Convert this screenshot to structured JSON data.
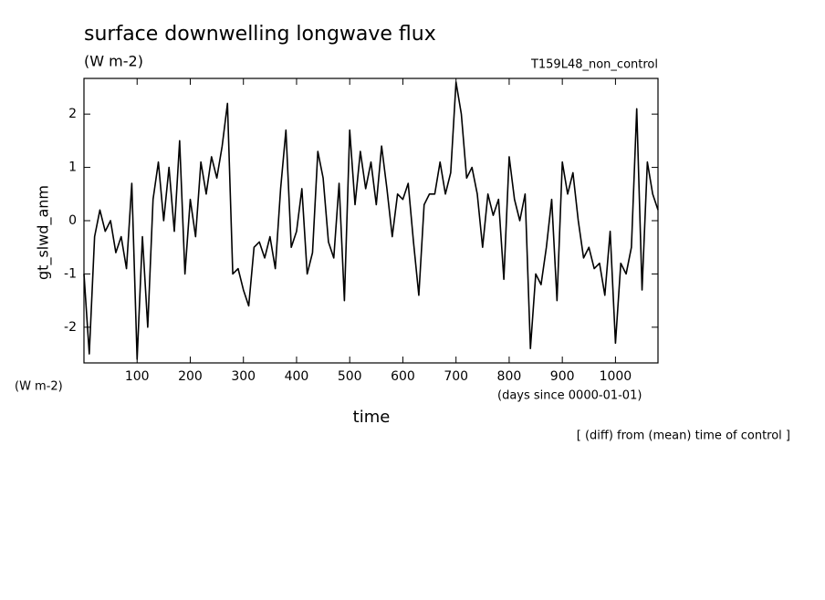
{
  "chart_data": {
    "type": "line",
    "title": "surface downwelling longwave flux",
    "subtitle": "(W m-2)",
    "annotation": "T159L48_non_control",
    "y_label": "gt_slwd_anm",
    "y_unit": "(W m-2)",
    "x_label": "time",
    "x_unit": "(days since 0000-01-01)",
    "note": "[ (diff) from (mean) time of control ]",
    "x": [
      0,
      10,
      20,
      30,
      40,
      50,
      60,
      70,
      80,
      90,
      100,
      110,
      120,
      130,
      140,
      150,
      160,
      170,
      180,
      190,
      200,
      210,
      220,
      230,
      240,
      250,
      260,
      270,
      280,
      290,
      300,
      310,
      320,
      330,
      340,
      350,
      360,
      370,
      380,
      390,
      400,
      410,
      420,
      430,
      440,
      450,
      460,
      470,
      480,
      490,
      500,
      510,
      520,
      530,
      540,
      550,
      560,
      570,
      580,
      590,
      600,
      610,
      620,
      630,
      640,
      650,
      660,
      670,
      680,
      690,
      700,
      710,
      720,
      730,
      740,
      750,
      760,
      770,
      780,
      790,
      800,
      810,
      820,
      830,
      840,
      850,
      860,
      870,
      880,
      890,
      900,
      910,
      920,
      930,
      940,
      950,
      960,
      970,
      980,
      990,
      1000,
      1010,
      1020,
      1030,
      1040,
      1050,
      1060,
      1070,
      1080
    ],
    "series": [
      {
        "name": "gt_slwd_anm",
        "color": "#000000",
        "values": [
          -1.0,
          -2.5,
          -0.3,
          0.2,
          -0.2,
          0.0,
          -0.6,
          -0.3,
          -0.9,
          0.7,
          -2.6,
          -0.3,
          -2.0,
          0.4,
          1.1,
          0.0,
          1.0,
          -0.2,
          1.5,
          -1.0,
          0.4,
          -0.3,
          1.1,
          0.5,
          1.2,
          0.8,
          1.4,
          2.2,
          -1.0,
          -0.9,
          -1.3,
          -1.6,
          -0.5,
          -0.4,
          -0.7,
          -0.3,
          -0.9,
          0.6,
          1.7,
          -0.5,
          -0.2,
          0.6,
          -1.0,
          -0.6,
          1.3,
          0.8,
          -0.4,
          -0.7,
          0.7,
          -1.5,
          1.7,
          0.3,
          1.3,
          0.6,
          1.1,
          0.3,
          1.4,
          0.6,
          -0.3,
          0.5,
          0.4,
          0.7,
          -0.4,
          -1.4,
          0.3,
          0.5,
          0.5,
          1.1,
          0.5,
          0.9,
          2.6,
          2.0,
          0.8,
          1.0,
          0.5,
          -0.5,
          0.5,
          0.1,
          0.4,
          -1.1,
          1.2,
          0.4,
          0.0,
          0.5,
          -2.4,
          -1.0,
          -1.2,
          -0.5,
          0.4,
          -1.5,
          1.1,
          0.5,
          0.9,
          0.0,
          -0.7,
          -0.5,
          -0.9,
          -0.8,
          -1.4,
          -0.2,
          -2.3,
          -0.8,
          -1.0,
          -0.5,
          2.1,
          -1.3,
          1.1,
          0.5,
          0.2
        ]
      }
    ],
    "xlim": [
      0,
      1080
    ],
    "ylim": [
      -2.67,
      2.67
    ],
    "xticks": [
      100,
      200,
      300,
      400,
      500,
      600,
      700,
      800,
      900,
      1000
    ],
    "yticks": [
      -2,
      -1,
      0,
      1,
      2
    ]
  }
}
